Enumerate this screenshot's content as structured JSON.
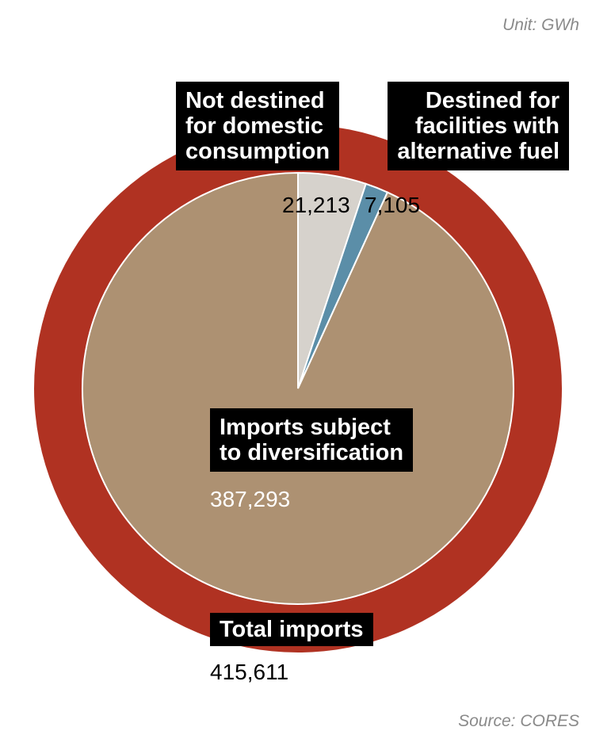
{
  "chart_data": {
    "type": "pie",
    "unit": "Unit: GWh",
    "source": "Source: CORES",
    "categories": [
      "Not destined\nfor domestic\nconsumption",
      "Destined  for\nfacilities with\nalternative fuel",
      "Imports subject\nto diversification"
    ],
    "values": [
      21213,
      7105,
      387293
    ],
    "value_labels": [
      "21,213",
      "7,105",
      "387,293"
    ],
    "colors": [
      "#d6d2cc",
      "#5b8ea8",
      "#ad9172"
    ],
    "total": {
      "label": "Total imports",
      "value": 415611,
      "value_label": "415,611",
      "color": "#b03222"
    }
  }
}
